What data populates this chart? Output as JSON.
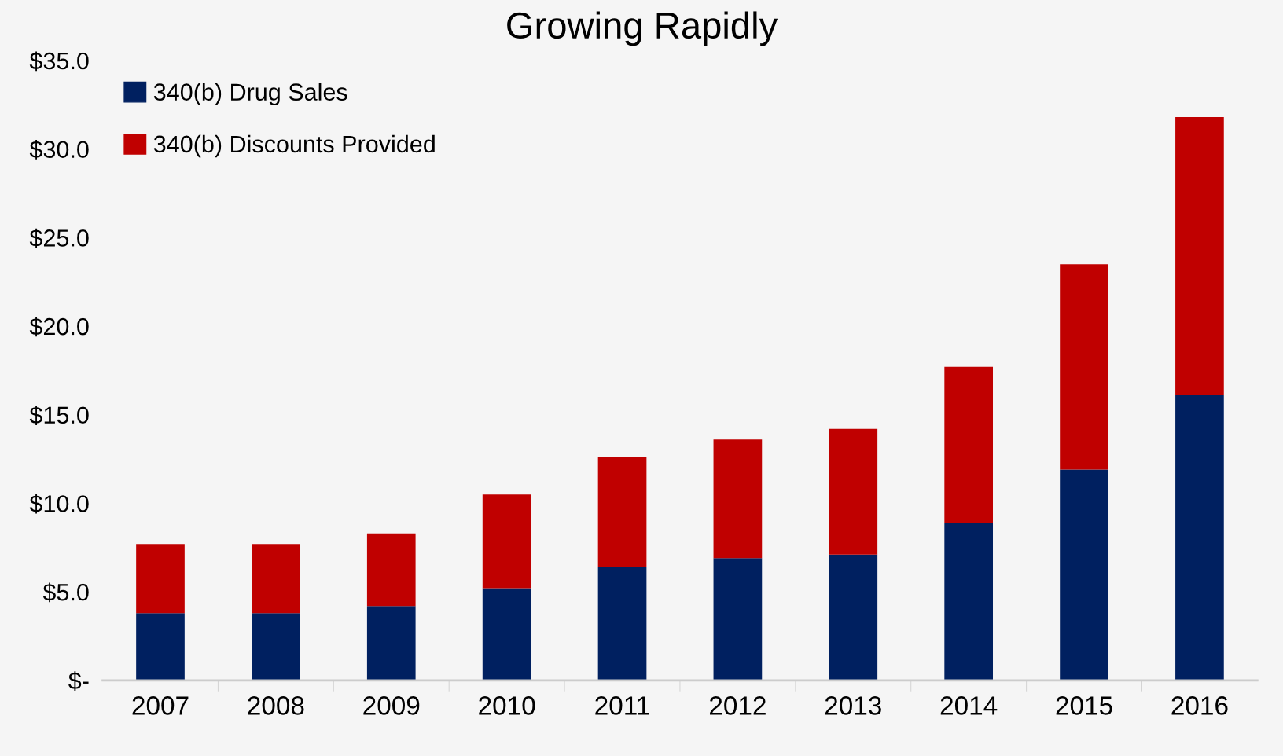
{
  "chart_data": {
    "type": "bar",
    "title": "Growing Rapidly",
    "stacked": true,
    "legend": "top left",
    "grid": false,
    "categories": [
      "2007",
      "2008",
      "2009",
      "2010",
      "2011",
      "2012",
      "2013",
      "2014",
      "2015",
      "2016"
    ],
    "series": [
      {
        "name": "340(b) Drug Sales",
        "color": "#002060",
        "values": [
          3.8,
          3.8,
          4.2,
          5.2,
          6.4,
          6.9,
          7.1,
          8.9,
          11.9,
          16.1
        ]
      },
      {
        "name": "340(b) Discounts Provided",
        "color": "#c00000",
        "values": [
          3.9,
          3.9,
          4.1,
          5.3,
          6.2,
          6.7,
          7.1,
          8.8,
          11.6,
          15.7
        ]
      }
    ],
    "ylim": [
      0,
      35
    ],
    "yticks": [
      {
        "value": 0,
        "label": "$-"
      },
      {
        "value": 5,
        "label": "$5.0"
      },
      {
        "value": 10,
        "label": "$10.0"
      },
      {
        "value": 15,
        "label": "$15.0"
      },
      {
        "value": 20,
        "label": "$20.0"
      },
      {
        "value": 25,
        "label": "$25.0"
      },
      {
        "value": 30,
        "label": "$30.0"
      },
      {
        "value": 35,
        "label": "$35.0"
      }
    ]
  }
}
